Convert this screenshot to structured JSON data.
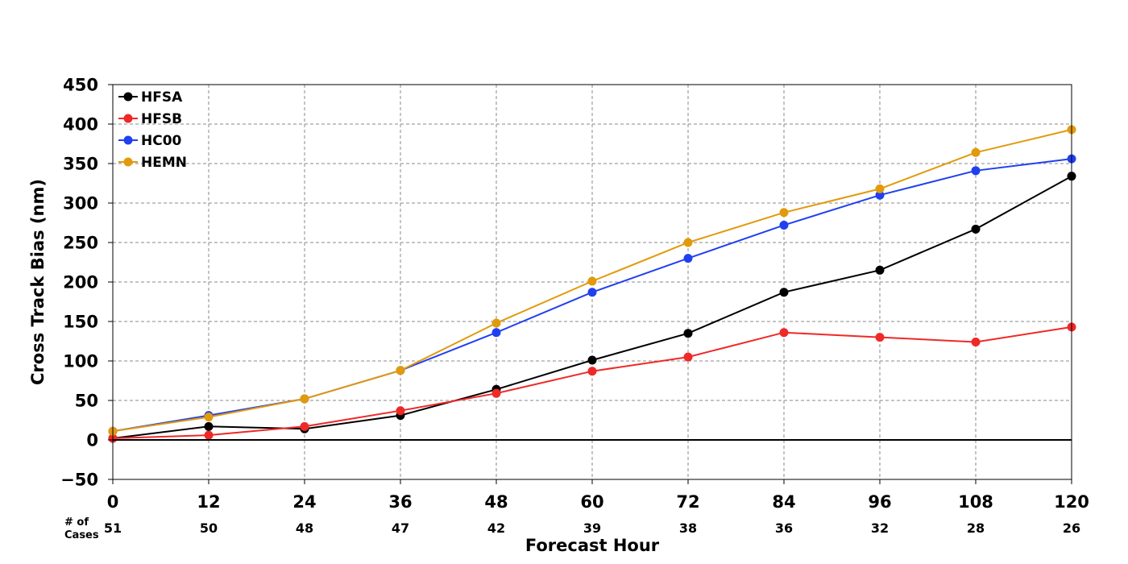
{
  "chart_data": {
    "type": "line",
    "xlabel": "Forecast Hour",
    "ylabel": "Cross Track Bias (nm)",
    "x": [
      0,
      12,
      24,
      36,
      48,
      60,
      72,
      84,
      96,
      108,
      120
    ],
    "xlim": [
      0,
      120
    ],
    "ylim": [
      -50,
      450
    ],
    "yticks": [
      -50,
      0,
      50,
      100,
      150,
      200,
      250,
      300,
      350,
      400,
      450
    ],
    "y_tick_labels": [
      "−50",
      "0",
      "50",
      "100",
      "150",
      "200",
      "250",
      "300",
      "350",
      "400",
      "450"
    ],
    "grid": true,
    "legend_position": "top-left",
    "cases_label": [
      "# of",
      "Cases"
    ],
    "cases": [
      51,
      50,
      48,
      47,
      42,
      39,
      38,
      36,
      32,
      28,
      26
    ],
    "series": [
      {
        "name": "HFSA",
        "color": "#000000",
        "values": [
          2,
          17,
          14,
          31,
          64,
          101,
          135,
          187,
          215,
          267,
          334
        ]
      },
      {
        "name": "HFSB",
        "color": "#f02828",
        "values": [
          2,
          6,
          17,
          37,
          59,
          87,
          105,
          136,
          130,
          124,
          143
        ]
      },
      {
        "name": "HC00",
        "color": "#2040f0",
        "values": [
          11,
          31,
          52,
          88,
          136,
          187,
          230,
          272,
          310,
          341,
          356
        ]
      },
      {
        "name": "HEMN",
        "color": "#e19a0c",
        "values": [
          11,
          29,
          52,
          88,
          148,
          201,
          250,
          288,
          318,
          364,
          393
        ]
      }
    ]
  }
}
